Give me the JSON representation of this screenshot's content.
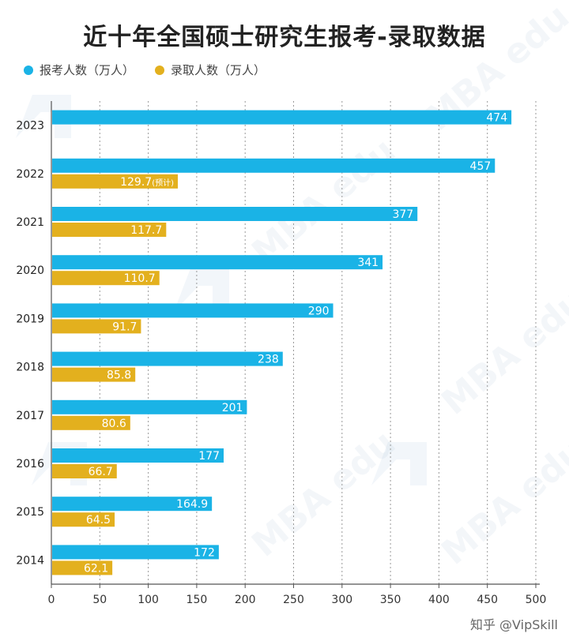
{
  "title": "近十年全国硕士研究生报考-录取数据",
  "legend": {
    "applicants": "报考人数（万人）",
    "admitted": "录取人数（万人）"
  },
  "colors": {
    "applicants": "#1ab3e6",
    "admitted": "#e3b01e"
  },
  "watermark": "MBA edu",
  "credit": "知乎 @VipSkill",
  "chart_data": {
    "type": "bar",
    "orientation": "horizontal",
    "title": "近十年全国硕士研究生报考-录取数据",
    "categories": [
      "2023",
      "2022",
      "2021",
      "2020",
      "2019",
      "2018",
      "2017",
      "2016",
      "2015",
      "2014"
    ],
    "series": [
      {
        "name": "报考人数（万人）",
        "values": [
          474,
          457,
          377,
          341,
          290,
          238,
          201,
          177,
          164.9,
          172
        ]
      },
      {
        "name": "录取人数（万人）",
        "values": [
          null,
          129.7,
          117.7,
          110.7,
          91.7,
          85.8,
          80.6,
          66.7,
          64.5,
          62.1
        ]
      }
    ],
    "value_labels": {
      "applicants": [
        "474",
        "457",
        "377",
        "341",
        "290",
        "238",
        "201",
        "177",
        "164.9",
        "172"
      ],
      "admitted": [
        "",
        "129.7",
        "117.7",
        "110.7",
        "91.7",
        "85.8",
        "80.6",
        "66.7",
        "64.5",
        "62.1"
      ]
    },
    "annotations": [
      {
        "category": "2022",
        "series": "录取人数（万人）",
        "text": "(预计)"
      }
    ],
    "xlim": [
      0,
      500
    ],
    "xticks": [
      0,
      50,
      100,
      150,
      200,
      250,
      300,
      350,
      400,
      450,
      500
    ],
    "grid": "vertical-dashed",
    "legend_position": "top-left"
  }
}
